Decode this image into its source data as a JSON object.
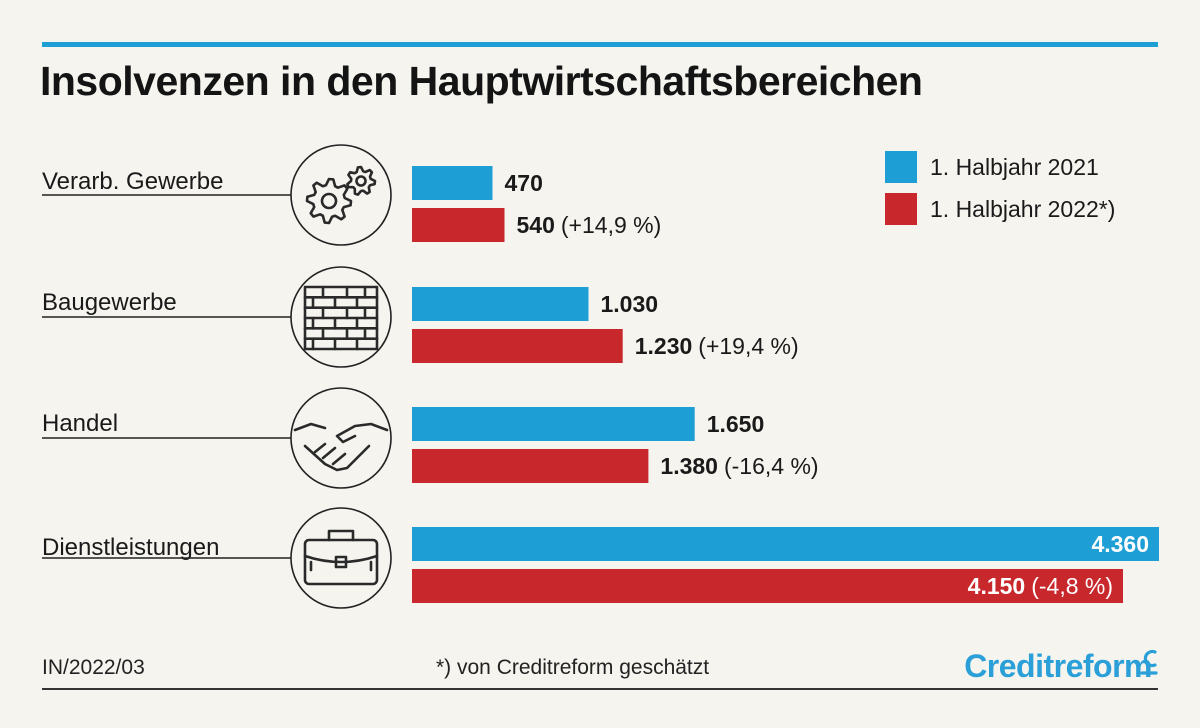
{
  "title": "Insolvenzen in den Hauptwirtschaftsbereichen",
  "footer": {
    "code": "IN/2022/03",
    "footnote": "*) von Creditreform geschätzt",
    "brand": "Creditreform"
  },
  "colors": {
    "series_2021": "#1d9fd6",
    "series_2022": "#c8282b",
    "accent_rule": "#1d9fd6",
    "text": "#1a1a1a"
  },
  "chart_data": {
    "type": "bar",
    "orientation": "horizontal",
    "categories": [
      "Verarb. Gewerbe",
      "Baugewerbe",
      "Handel",
      "Dienstleistungen"
    ],
    "category_icons": [
      "gears-icon",
      "brick-wall-icon",
      "handshake-icon",
      "briefcase-icon"
    ],
    "series": [
      {
        "name": "1. Halbjahr 2021",
        "values": [
          470,
          1030,
          1650,
          4360
        ]
      },
      {
        "name": "1. Halbjahr 2022*)",
        "values": [
          540,
          1230,
          1380,
          4150
        ]
      }
    ],
    "value_labels": [
      [
        "470",
        "1.030",
        "1.650",
        "4.360"
      ],
      [
        "540",
        "1.230",
        "1.380",
        "4.150"
      ]
    ],
    "change_labels": [
      "(+14,9 %)",
      "(+19,4 %)",
      "(-16,4 %)",
      "(-4,8 %)"
    ],
    "xlim": [
      0,
      4360
    ],
    "legend_position": "top-right",
    "grid": false
  }
}
